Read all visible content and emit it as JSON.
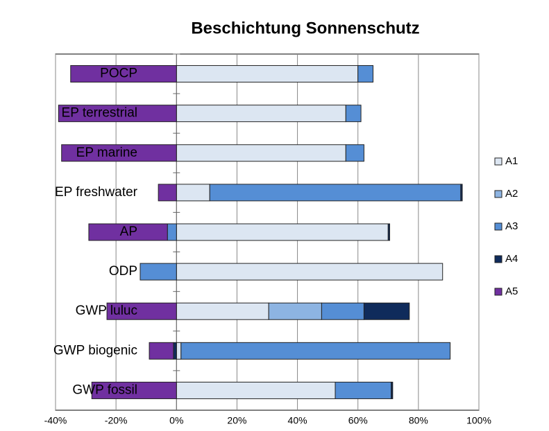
{
  "chart_data": {
    "type": "stacked_barh",
    "title": "Beschichtung Sonnenschutz",
    "categories": [
      "POCP",
      "EP terrestrial",
      "EP marine",
      "EP freshwater",
      "AP",
      "ODP",
      "GWP luluc",
      "GWP biogenic",
      "GWP fossil"
    ],
    "series": [
      {
        "name": "A1",
        "color": "#dce6f2",
        "values": [
          60,
          56,
          56,
          11,
          70,
          88,
          30.5,
          1.5,
          52.5
        ]
      },
      {
        "name": "A2",
        "color": "#8db4e2",
        "values": [
          0,
          0,
          0,
          0,
          0,
          0,
          17.5,
          0,
          0
        ]
      },
      {
        "name": "A3",
        "color": "#558ed5",
        "values": [
          5,
          5,
          6,
          83,
          -3,
          -12,
          14,
          89,
          18.5
        ]
      },
      {
        "name": "A4",
        "color": "#0f2b5b",
        "values": [
          0,
          0,
          0,
          0.5,
          0.5,
          0,
          15,
          -1,
          0.5
        ]
      },
      {
        "name": "A5",
        "color": "#7030a0",
        "values": [
          -35,
          -39,
          -38,
          -6,
          -26,
          0,
          -23,
          -8,
          -28
        ]
      }
    ],
    "xlim": [
      -40,
      100
    ],
    "xticks": [
      {
        "value": -40,
        "label": "-40%"
      },
      {
        "value": -20,
        "label": "-20%"
      },
      {
        "value": 0,
        "label": "0%"
      },
      {
        "value": 20,
        "label": "20%"
      },
      {
        "value": 40,
        "label": "40%"
      },
      {
        "value": 60,
        "label": "60%"
      },
      {
        "value": 80,
        "label": "80%"
      },
      {
        "value": 100,
        "label": "100%"
      }
    ],
    "grid": true,
    "legend": "right"
  }
}
